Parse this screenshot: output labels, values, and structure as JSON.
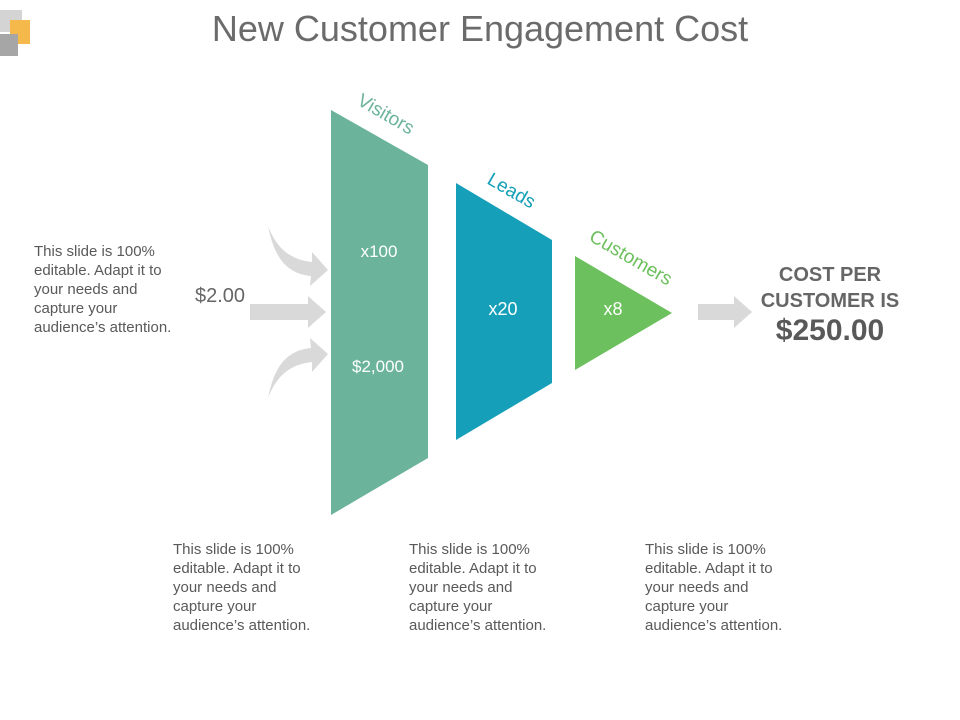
{
  "title": "New Customer Engagement Cost",
  "left_note": "This slide is 100%\neditable. Adapt it to\nyour needs and\ncapture your\naudience’s attention.",
  "unit_cost": "$2.00",
  "stages": [
    {
      "label": "Visitors",
      "multiplier": "x100",
      "amount": "$2,000",
      "color": "#6bb49b"
    },
    {
      "label": "Leads",
      "multiplier": "x20",
      "color": "#159fb8"
    },
    {
      "label": "Customers",
      "multiplier": "x8",
      "color": "#6cc05d"
    }
  ],
  "result": {
    "label": "COST PER\nCUSTOMER IS",
    "value": "$250.00"
  },
  "bottom_notes": [
    "This slide is 100%\neditable. Adapt it to\nyour needs and\ncapture your\naudience’s attention.",
    "This slide is 100%\neditable. Adapt it to\nyour needs and\ncapture your\naudience’s attention.",
    "This slide is 100%\neditable. Adapt it to\nyour needs and\ncapture your\naudience’s attention."
  ],
  "colors": {
    "arrow": "#d9d9d9",
    "logo_gray": "#b9b9b9",
    "logo_orange": "#f5b84a"
  }
}
